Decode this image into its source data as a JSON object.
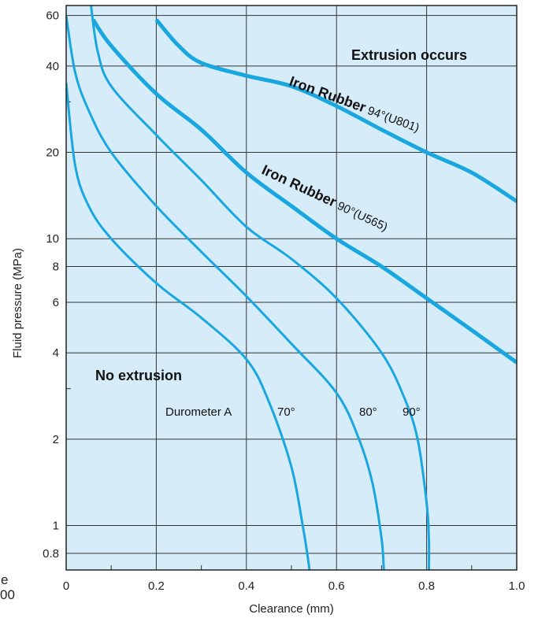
{
  "chart_data": {
    "type": "line",
    "xlabel": "Clearance (mm)",
    "ylabel": "Fluid pressure (MPa)",
    "xlim": [
      0,
      1.0
    ],
    "ylim": [
      0.7,
      65
    ],
    "yscale": "log",
    "grid": true,
    "background": "#d6ecf9",
    "line_color": "#1aa7e0",
    "x_ticks": [
      "0",
      "0.2",
      "0.4",
      "0.6",
      "0.8",
      "1.0"
    ],
    "y_ticks": [
      {
        "label": "0.8",
        "value": 0.8
      },
      {
        "label": "1",
        "value": 1
      },
      {
        "label": "2",
        "value": 2
      },
      {
        "label": "4",
        "value": 4
      },
      {
        "label": "6",
        "value": 6
      },
      {
        "label": "8",
        "value": 8
      },
      {
        "label": "10",
        "value": 10
      },
      {
        "label": "20",
        "value": 20
      },
      {
        "label": "40",
        "value": 40
      },
      {
        "label": "60",
        "value": 60
      }
    ],
    "region_labels": [
      "Extrusion occurs",
      "No extrusion"
    ],
    "durometer_label": "Durometer A",
    "series": [
      {
        "name": "70°",
        "bold": false,
        "points": [
          [
            0,
            35
          ],
          [
            0.02,
            18
          ],
          [
            0.05,
            13
          ],
          [
            0.1,
            10
          ],
          [
            0.2,
            7
          ],
          [
            0.3,
            5.3
          ],
          [
            0.4,
            3.8
          ],
          [
            0.45,
            2.7
          ],
          [
            0.5,
            1.6
          ],
          [
            0.525,
            1.0
          ],
          [
            0.535,
            0.8
          ],
          [
            0.54,
            0.7
          ]
        ]
      },
      {
        "name": "80°",
        "bold": false,
        "points": [
          [
            0,
            60
          ],
          [
            0.02,
            38
          ],
          [
            0.05,
            28
          ],
          [
            0.1,
            20
          ],
          [
            0.2,
            13
          ],
          [
            0.3,
            9
          ],
          [
            0.4,
            6.3
          ],
          [
            0.5,
            4.3
          ],
          [
            0.6,
            2.9
          ],
          [
            0.65,
            2.0
          ],
          [
            0.68,
            1.4
          ],
          [
            0.7,
            0.9
          ],
          [
            0.705,
            0.7
          ]
        ]
      },
      {
        "name": "90°",
        "bold": false,
        "points": [
          [
            0.055,
            65
          ],
          [
            0.07,
            45
          ],
          [
            0.1,
            34
          ],
          [
            0.2,
            23
          ],
          [
            0.3,
            16
          ],
          [
            0.4,
            11
          ],
          [
            0.5,
            8.5
          ],
          [
            0.6,
            6.2
          ],
          [
            0.7,
            4.0
          ],
          [
            0.75,
            2.8
          ],
          [
            0.78,
            2.0
          ],
          [
            0.8,
            1.2
          ],
          [
            0.805,
            0.9
          ],
          [
            0.805,
            0.7
          ]
        ]
      },
      {
        "name": "Iron Rubber 94°(U801)",
        "bold": true,
        "points": [
          [
            0.2,
            58
          ],
          [
            0.25,
            47
          ],
          [
            0.3,
            41
          ],
          [
            0.4,
            37
          ],
          [
            0.5,
            34
          ],
          [
            0.6,
            29
          ],
          [
            0.7,
            24
          ],
          [
            0.8,
            20
          ],
          [
            0.9,
            17
          ],
          [
            1.0,
            13.5
          ]
        ]
      },
      {
        "name": "Iron Rubber 90°(U565)",
        "bold": true,
        "points": [
          [
            0.06,
            58
          ],
          [
            0.1,
            47
          ],
          [
            0.2,
            32
          ],
          [
            0.3,
            24
          ],
          [
            0.4,
            17
          ],
          [
            0.5,
            13
          ],
          [
            0.6,
            10
          ],
          [
            0.7,
            8
          ],
          [
            0.8,
            6.2
          ],
          [
            0.9,
            4.8
          ],
          [
            1.0,
            3.7
          ]
        ]
      }
    ],
    "annotations": [
      {
        "bold": "Iron Rubber",
        "rest": "94°(U801)"
      },
      {
        "bold": "Iron Rubber",
        "rest": "90°(U565)"
      }
    ],
    "curve_labels": [
      "70°",
      "80°",
      "90°"
    ]
  },
  "cut_text": [
    "e",
    "00"
  ]
}
